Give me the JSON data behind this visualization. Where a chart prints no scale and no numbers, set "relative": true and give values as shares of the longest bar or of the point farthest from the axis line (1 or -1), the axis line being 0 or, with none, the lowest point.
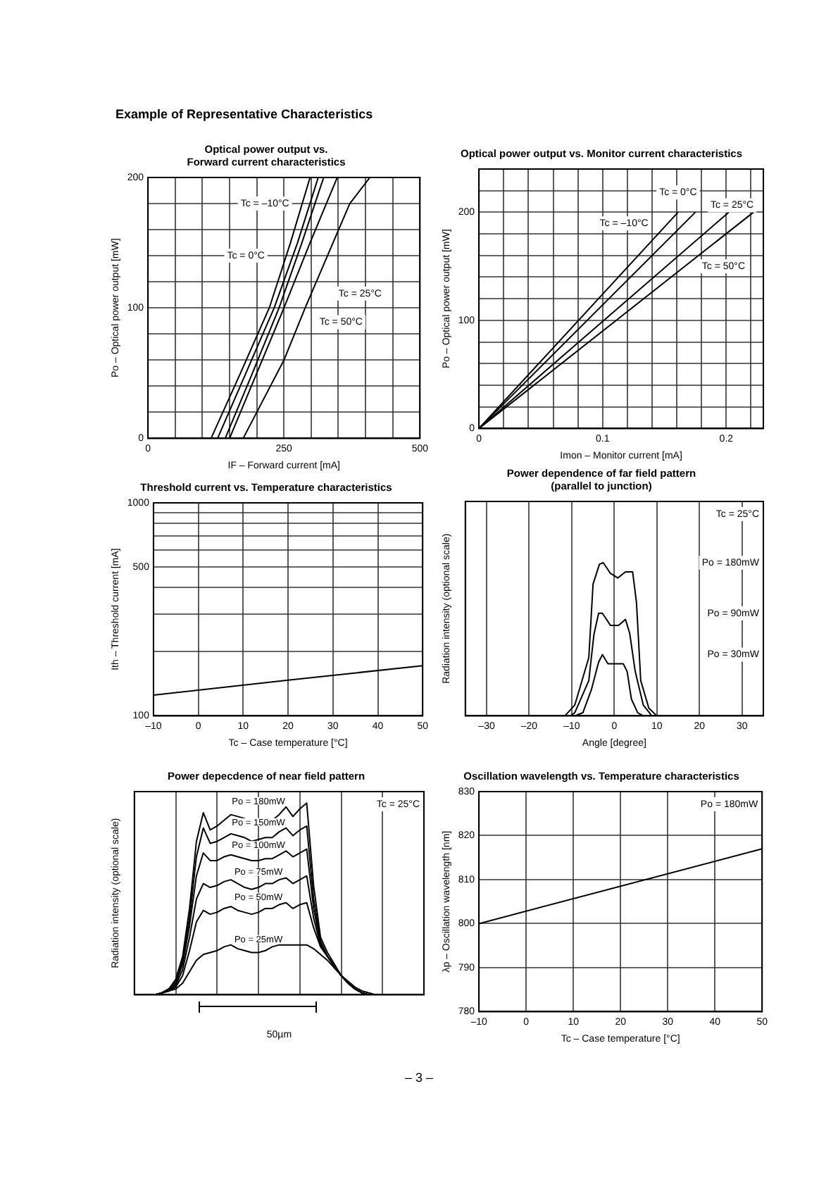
{
  "chart_data": [
    {
      "type": "line",
      "title": "Optical power output vs.\nForward current characteristics",
      "xlabel": "IF – Forward current [mA]",
      "ylabel": "Po – Optical power output [mW]",
      "xlim": [
        0,
        500
      ],
      "xticks": [
        0,
        {
          "value": 50,
          "label": null
        },
        {
          "value": 100,
          "label": null
        },
        {
          "value": 150,
          "label": null
        },
        {
          "value": 200,
          "label": null
        },
        250,
        {
          "value": 300,
          "label": null
        },
        {
          "value": 350,
          "label": null
        },
        {
          "value": 400,
          "label": null
        },
        {
          "value": 450,
          "label": null
        },
        500
      ],
      "ylim": [
        0,
        200
      ],
      "yticks": [
        0,
        {
          "value": 20,
          "label": null
        },
        {
          "value": 40,
          "label": null
        },
        {
          "value": 60,
          "label": null
        },
        {
          "value": 80,
          "label": null
        },
        100,
        {
          "value": 120,
          "label": null
        },
        {
          "value": 140,
          "label": null
        },
        {
          "value": 160,
          "label": null
        },
        {
          "value": 180,
          "label": null
        },
        200
      ],
      "grid": true,
      "legend": false,
      "series": [
        {
          "color": "#000000",
          "x": [
            116,
            170,
            223,
            262,
            298
          ],
          "values": [
            0,
            50,
            100,
            150,
            200
          ]
        },
        {
          "color": "#000000",
          "x": [
            128,
            180,
            232,
            275,
            313
          ],
          "values": [
            0,
            50,
            100,
            150,
            200
          ]
        },
        {
          "color": "#000000",
          "x": [
            142,
            192,
            241,
            283,
            323
          ],
          "values": [
            0,
            50,
            100,
            150,
            200
          ]
        },
        {
          "color": "#000000",
          "x": [
            150,
            200,
            250,
            298,
            348
          ],
          "values": [
            0,
            50,
            100,
            150,
            200
          ]
        },
        {
          "color": "#000000",
          "x": [
            175,
            200,
            250,
            289,
            330,
            371,
            408
          ],
          "values": [
            0,
            20,
            60,
            100,
            140,
            180,
            200
          ]
        }
      ],
      "annotations": [
        "Example of Representative Characteristics",
        "Tc = –10°C",
        "Tc = 0°C",
        "Tc = 25°C",
        "Tc = 50°C"
      ]
    },
    {
      "type": "line",
      "title": "Optical power output vs. Monitor current characteristics",
      "xlabel": "Imon – Monitor current [mA]",
      "ylabel": "Po – Optical power output [mW]",
      "xlim": [
        0,
        0.23
      ],
      "xticks": [
        0,
        {
          "value": 0.02,
          "label": null
        },
        {
          "value": 0.04,
          "label": null
        },
        {
          "value": 0.06,
          "label": null
        },
        {
          "value": 0.08,
          "label": null
        },
        0.1,
        {
          "value": 0.12,
          "label": null
        },
        {
          "value": 0.14,
          "label": null
        },
        {
          "value": 0.16,
          "label": null
        },
        {
          "value": 0.18,
          "label": null
        },
        0.2,
        {
          "value": 0.22,
          "label": null
        }
      ],
      "ylim": [
        0,
        240
      ],
      "yticks": [
        0,
        {
          "value": 20,
          "label": null
        },
        {
          "value": 40,
          "label": null
        },
        {
          "value": 60,
          "label": null
        },
        {
          "value": 80,
          "label": null
        },
        100,
        {
          "value": 120,
          "label": null
        },
        {
          "value": 140,
          "label": null
        },
        {
          "value": 160,
          "label": null
        },
        {
          "value": 180,
          "label": null
        },
        200,
        {
          "value": 220,
          "label": null
        },
        {
          "value": 240,
          "label": null
        }
      ],
      "grid": true,
      "legend": false,
      "series": [
        {
          "color": "#000000",
          "x": [
            0,
            0.161
          ],
          "values": [
            0,
            200
          ]
        },
        {
          "color": "#000000",
          "x": [
            0,
            0.175
          ],
          "values": [
            0,
            200
          ]
        },
        {
          "color": "#000000",
          "x": [
            0,
            0.202
          ],
          "values": [
            0,
            200
          ]
        },
        {
          "color": "#000000",
          "x": [
            0,
            0.222
          ],
          "values": [
            0,
            200
          ]
        }
      ],
      "annotations": [
        "Tc = –10°C",
        "Tc = 0°C",
        "Tc = 25°C",
        "Tc = 50°C"
      ]
    },
    {
      "type": "line",
      "title": "Threshold current vs. Temperature characteristics",
      "xlabel": "Tc – Case temperature [°C]",
      "ylabel": "Ith – Threshold current [mA]",
      "xlim": [
        -10,
        50
      ],
      "xticks": [
        {
          "value": -10,
          "label": "–10"
        },
        0,
        10,
        20,
        30,
        40,
        50
      ],
      "ylim": [
        100,
        1000
      ],
      "yticks": [
        100,
        {
          "value": 200,
          "label": null
        },
        {
          "value": 300,
          "label": null
        },
        {
          "value": 400,
          "label": null
        },
        500,
        {
          "value": 600,
          "label": null
        },
        {
          "value": 700,
          "label": null
        },
        {
          "value": 800,
          "label": null
        },
        {
          "value": 900,
          "label": null
        },
        1000
      ],
      "log": "y",
      "grid": true,
      "legend": false,
      "series": [
        {
          "color": "#000000",
          "x": [
            -10,
            20,
            50
          ],
          "values": [
            125,
            147,
            172
          ]
        }
      ]
    },
    {
      "type": "line",
      "title": "Power dependence of far field pattern\n(parallel to junction)",
      "xlabel": "Angle [degree]",
      "ylabel": "Radiation intensity (optional scale)",
      "relative": true,
      "xlim": [
        -35,
        35
      ],
      "xticks": [
        {
          "value": -30,
          "label": "–30"
        },
        {
          "value": -20,
          "label": "–20"
        },
        {
          "value": -10,
          "label": "–10"
        },
        0,
        10,
        20,
        30
      ],
      "grid": "x",
      "legend": false,
      "series": [
        {
          "name": "Po = 180mW",
          "color": "#000000",
          "x": [
            -11.6,
            -9.3,
            -6,
            -5,
            -3.5,
            -2.6,
            -0.9,
            0.8,
            2.6,
            4.3,
            5.2,
            6.2,
            8.1,
            10
          ],
          "values": [
            0,
            0.07,
            0.38,
            0.86,
            0.99,
            1,
            0.93,
            0.9,
            0.94,
            0.94,
            0.74,
            0.23,
            0.05,
            0
          ]
        },
        {
          "name": "Po = 90mW",
          "color": "#000000",
          "x": [
            -10.3,
            -9.3,
            -6,
            -4.8,
            -3.7,
            -2.8,
            -0.9,
            1,
            2.6,
            3.6,
            4.9,
            6.8,
            8.8
          ],
          "values": [
            0,
            0.02,
            0.23,
            0.53,
            0.67,
            0.67,
            0.59,
            0.59,
            0.63,
            0.54,
            0.29,
            0.07,
            0
          ]
        },
        {
          "name": "Po = 30mW",
          "color": "#000000",
          "x": [
            -9.3,
            -7.4,
            -5.4,
            -3.7,
            -2.8,
            -1.5,
            0.4,
            2.1,
            3,
            4,
            5.5,
            6.8
          ],
          "values": [
            0,
            0.02,
            0.17,
            0.35,
            0.4,
            0.34,
            0.34,
            0.34,
            0.29,
            0.11,
            0.02,
            0
          ]
        }
      ],
      "annotations": [
        "Tc = 25°C"
      ]
    },
    {
      "type": "line",
      "title": "Power depecdence of near field pattern",
      "xlabel": "50µm",
      "ylabel": "Radiation intensity (optional scale)",
      "relative": true,
      "grid": "x",
      "legend": false,
      "categories": [
        null,
        null,
        null,
        null,
        null,
        null,
        null,
        null,
        null,
        null,
        null,
        null,
        null,
        null,
        null,
        null,
        null,
        null,
        null,
        null,
        null,
        null,
        null,
        null,
        null,
        null,
        null,
        null,
        null,
        null,
        null,
        null,
        null,
        null,
        null,
        null,
        null,
        null,
        null,
        null,
        null,
        null,
        null
      ],
      "series": [
        {
          "name": "Po = 180mW",
          "color": "#000000",
          "values": [
            0,
            0,
            0,
            0,
            0.01,
            0.03,
            0.08,
            0.2,
            0.45,
            0.8,
            0.95,
            0.86,
            0.88,
            0.91,
            0.94,
            0.93,
            0.92,
            0.89,
            0.9,
            0.91,
            0.91,
            0.94,
            0.98,
            0.93,
            0.97,
            1.0,
            0.57,
            0.3,
            0.22,
            0.16,
            0.1,
            0.06,
            0.03,
            0.01,
            0,
            0,
            0,
            0,
            0,
            0,
            0,
            0,
            0
          ]
        },
        {
          "name": "Po = 150mW",
          "color": "#000000",
          "values": [
            0,
            0,
            0,
            0,
            0.01,
            0.03,
            0.07,
            0.18,
            0.4,
            0.72,
            0.87,
            0.79,
            0.8,
            0.82,
            0.84,
            0.83,
            0.82,
            0.8,
            0.81,
            0.82,
            0.82,
            0.85,
            0.87,
            0.83,
            0.86,
            0.88,
            0.5,
            0.28,
            0.2,
            0.15,
            0.1,
            0.06,
            0.03,
            0.01,
            0,
            0,
            0,
            0,
            0,
            0,
            0,
            0,
            0
          ]
        },
        {
          "name": "Po = 100mW",
          "color": "#000000",
          "values": [
            0,
            0,
            0,
            0,
            0.01,
            0.02,
            0.06,
            0.16,
            0.36,
            0.62,
            0.74,
            0.7,
            0.7,
            0.72,
            0.73,
            0.72,
            0.71,
            0.7,
            0.7,
            0.71,
            0.71,
            0.73,
            0.75,
            0.72,
            0.74,
            0.76,
            0.45,
            0.27,
            0.2,
            0.15,
            0.1,
            0.06,
            0.03,
            0.01,
            0,
            0,
            0,
            0,
            0,
            0,
            0,
            0,
            0
          ]
        },
        {
          "name": "Po = 75mW",
          "color": "#000000",
          "values": [
            0,
            0,
            0,
            0,
            0.01,
            0.02,
            0.05,
            0.13,
            0.3,
            0.5,
            0.58,
            0.56,
            0.57,
            0.59,
            0.6,
            0.58,
            0.56,
            0.55,
            0.56,
            0.58,
            0.58,
            0.6,
            0.61,
            0.58,
            0.6,
            0.62,
            0.4,
            0.26,
            0.2,
            0.15,
            0.1,
            0.06,
            0.03,
            0.01,
            0,
            0,
            0,
            0,
            0,
            0,
            0,
            0,
            0
          ]
        },
        {
          "name": "Po = 50mW",
          "color": "#000000",
          "values": [
            0,
            0,
            0,
            0,
            0.01,
            0.02,
            0.04,
            0.1,
            0.23,
            0.38,
            0.44,
            0.42,
            0.43,
            0.45,
            0.46,
            0.44,
            0.43,
            0.42,
            0.43,
            0.45,
            0.45,
            0.47,
            0.48,
            0.45,
            0.47,
            0.48,
            0.35,
            0.25,
            0.2,
            0.15,
            0.1,
            0.06,
            0.03,
            0.01,
            0,
            0,
            0,
            0,
            0,
            0,
            0,
            0,
            0
          ]
        },
        {
          "name": "Po = 25mW",
          "color": "#000000",
          "values": [
            0,
            0,
            0,
            0,
            0.01,
            0.02,
            0.03,
            0.06,
            0.12,
            0.18,
            0.21,
            0.22,
            0.23,
            0.25,
            0.26,
            0.24,
            0.23,
            0.22,
            0.22,
            0.23,
            0.25,
            0.26,
            0.26,
            0.26,
            0.26,
            0.26,
            0.24,
            0.21,
            0.18,
            0.14,
            0.1,
            0.07,
            0.04,
            0.02,
            0.01,
            0,
            0,
            0,
            0,
            0,
            0,
            0,
            0
          ]
        }
      ],
      "annotations": [
        "Tc = 25°C"
      ]
    },
    {
      "type": "line",
      "title": "Oscillation wavelength vs. Temperature characteristics",
      "xlabel": "Tc – Case temperature [°C]",
      "ylabel": "λp – Oscillation wavelength [nm]",
      "xlim": [
        -10,
        50
      ],
      "xticks": [
        {
          "value": -10,
          "label": "–10"
        },
        0,
        10,
        20,
        30,
        40,
        50
      ],
      "ylim": [
        780,
        830
      ],
      "yticks": [
        780,
        790,
        800,
        810,
        820,
        830
      ],
      "grid": true,
      "legend": false,
      "series": [
        {
          "color": "#000000",
          "x": [
            -10,
            50
          ],
          "values": [
            800,
            817
          ]
        }
      ],
      "annotations": [
        "Po = 180mW",
        "– 3 –"
      ]
    }
  ]
}
